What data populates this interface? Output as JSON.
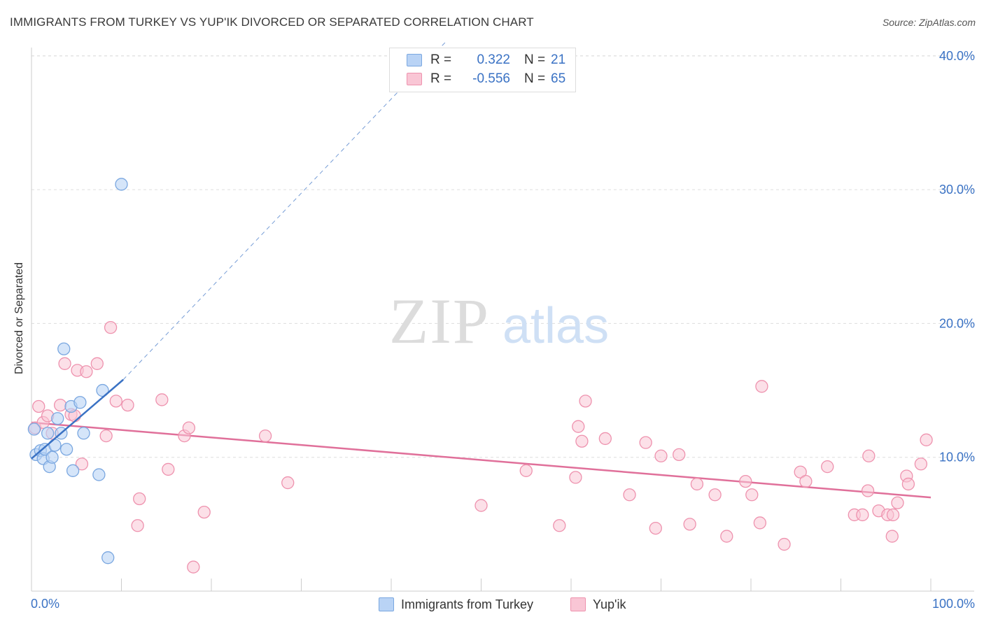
{
  "title": "IMMIGRANTS FROM TURKEY VS YUP'IK DIVORCED OR SEPARATED CORRELATION CHART",
  "source": "Source: ZipAtlas.com",
  "watermark": {
    "zip": "ZIP",
    "atlas": "atlas"
  },
  "legend": {
    "series1": {
      "r_label": "R =",
      "r_value": "0.322",
      "n_label": "N =",
      "n_value": "21"
    },
    "series2": {
      "r_label": "R =",
      "r_value": "-0.556",
      "n_label": "N =",
      "n_value": "65"
    }
  },
  "colors": {
    "series1_fill": "#b9d3f5",
    "series1_stroke": "#7aa7e0",
    "series1_line": "#3a72c4",
    "series2_fill": "#f9c6d5",
    "series2_stroke": "#ee92ae",
    "series2_line": "#e0709a",
    "tick_label": "#3a72c4",
    "grid": "#dddddd"
  },
  "chart_data": {
    "type": "scatter",
    "title": "IMMIGRANTS FROM TURKEY VS YUP'IK DIVORCED OR SEPARATED CORRELATION CHART",
    "xlabel": "",
    "ylabel": "Divorced or Separated",
    "xlim": [
      0,
      100
    ],
    "ylim": [
      0,
      42
    ],
    "x_tick_labels": [
      "0.0%",
      "100.0%"
    ],
    "y_ticks": [
      10,
      20,
      30,
      40
    ],
    "y_tick_labels": [
      "10.0%",
      "20.0%",
      "30.0%",
      "40.0%"
    ],
    "grid": true,
    "legend_position": "bottom",
    "series": [
      {
        "name": "Immigrants from Turkey",
        "points": [
          [
            0.3,
            12.1
          ],
          [
            0.5,
            10.2
          ],
          [
            1.0,
            10.5
          ],
          [
            1.3,
            9.9
          ],
          [
            1.5,
            10.6
          ],
          [
            1.8,
            11.8
          ],
          [
            2.0,
            9.3
          ],
          [
            2.3,
            10.0
          ],
          [
            2.6,
            10.9
          ],
          [
            2.9,
            12.9
          ],
          [
            3.3,
            11.8
          ],
          [
            3.6,
            18.1
          ],
          [
            3.9,
            10.6
          ],
          [
            4.4,
            13.8
          ],
          [
            4.6,
            9.0
          ],
          [
            5.4,
            14.1
          ],
          [
            5.8,
            11.8
          ],
          [
            7.5,
            8.7
          ],
          [
            7.9,
            15.0
          ],
          [
            8.5,
            2.5
          ],
          [
            10.0,
            30.4
          ]
        ],
        "trend": {
          "x0": 0,
          "y0": 9.9,
          "x1": 10.2,
          "y1": 15.8,
          "dashed_to": {
            "x": 46,
            "y": 41
          }
        }
      },
      {
        "name": "Yup'ik",
        "points": [
          [
            0.4,
            12.2
          ],
          [
            0.8,
            13.8
          ],
          [
            1.3,
            12.6
          ],
          [
            1.8,
            13.1
          ],
          [
            2.3,
            11.8
          ],
          [
            3.2,
            13.9
          ],
          [
            3.7,
            17.0
          ],
          [
            4.4,
            13.2
          ],
          [
            4.8,
            13.1
          ],
          [
            5.1,
            16.5
          ],
          [
            5.6,
            9.5
          ],
          [
            6.1,
            16.4
          ],
          [
            7.3,
            17.0
          ],
          [
            8.3,
            11.6
          ],
          [
            8.8,
            19.7
          ],
          [
            9.4,
            14.2
          ],
          [
            10.7,
            13.9
          ],
          [
            11.8,
            4.9
          ],
          [
            12.0,
            6.9
          ],
          [
            14.5,
            14.3
          ],
          [
            15.2,
            9.1
          ],
          [
            17.0,
            11.6
          ],
          [
            17.5,
            12.2
          ],
          [
            18.0,
            1.8
          ],
          [
            19.2,
            5.9
          ],
          [
            26.0,
            11.6
          ],
          [
            28.5,
            8.1
          ],
          [
            50.0,
            6.4
          ],
          [
            55.0,
            9.0
          ],
          [
            58.7,
            4.9
          ],
          [
            60.5,
            8.5
          ],
          [
            60.8,
            12.3
          ],
          [
            61.2,
            11.2
          ],
          [
            61.6,
            14.2
          ],
          [
            63.8,
            11.4
          ],
          [
            66.5,
            7.2
          ],
          [
            68.3,
            11.1
          ],
          [
            69.4,
            4.7
          ],
          [
            70.0,
            10.1
          ],
          [
            72.0,
            10.2
          ],
          [
            73.2,
            5.0
          ],
          [
            74.0,
            8.0
          ],
          [
            76.0,
            7.2
          ],
          [
            77.3,
            4.1
          ],
          [
            79.4,
            8.2
          ],
          [
            80.1,
            7.2
          ],
          [
            81.0,
            5.1
          ],
          [
            81.2,
            15.3
          ],
          [
            83.7,
            3.5
          ],
          [
            85.5,
            8.9
          ],
          [
            86.1,
            8.2
          ],
          [
            88.5,
            9.3
          ],
          [
            91.5,
            5.7
          ],
          [
            92.4,
            5.7
          ],
          [
            93.0,
            7.5
          ],
          [
            93.1,
            10.1
          ],
          [
            94.2,
            6.0
          ],
          [
            95.2,
            5.7
          ],
          [
            95.7,
            4.1
          ],
          [
            96.3,
            6.6
          ],
          [
            97.3,
            8.6
          ],
          [
            97.5,
            8.0
          ],
          [
            98.9,
            9.5
          ],
          [
            99.5,
            11.3
          ],
          [
            95.8,
            5.7
          ]
        ],
        "trend": {
          "x0": 0,
          "y0": 12.6,
          "x1": 100,
          "y1": 7.0
        }
      }
    ]
  }
}
